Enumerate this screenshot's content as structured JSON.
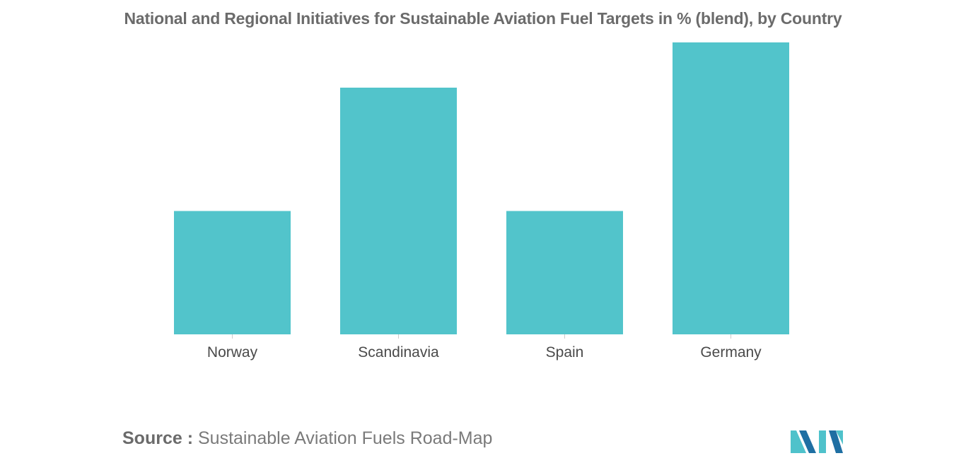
{
  "chart_data": {
    "type": "bar",
    "title": "National and Regional Initiatives for Sustainable Aviation Fuel Targets in % (blend), by Country",
    "categories": [
      "Norway",
      "Scandinavia",
      "Spain",
      "Germany"
    ],
    "values": [
      30,
      60,
      30,
      71
    ],
    "xlabel": "",
    "ylabel": "",
    "ylim": [
      0,
      71
    ],
    "grid": false,
    "legend": "none",
    "bar_color": "#52c4cb"
  },
  "source": {
    "label": "Source :",
    "text": "Sustainable Aviation Fuels Road-Map"
  },
  "colors": {
    "logo_dark": "#1f6fa3",
    "logo_light": "#4fc2cb"
  }
}
